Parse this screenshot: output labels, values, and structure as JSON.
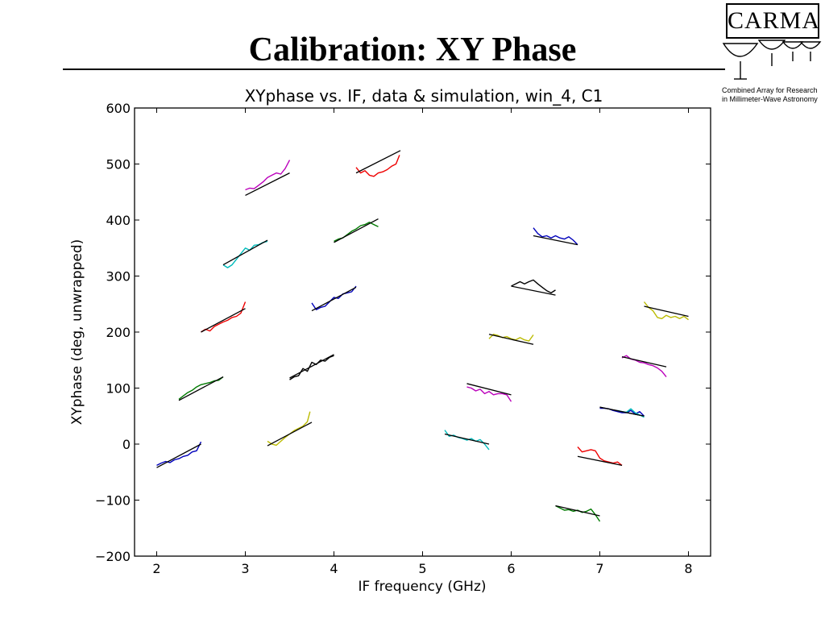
{
  "slide": {
    "title": "Calibration: XY Phase"
  },
  "logo": {
    "name": "CARMA",
    "line1": "Combined Array for Research",
    "line2": "in Millimeter-Wave Astronomy"
  },
  "chart_data": {
    "type": "line",
    "title": "XYphase vs. IF, data & simulation, win_4, C1",
    "xlabel": "IF frequency (GHz)",
    "ylabel": "XYphase (deg, unwrapped)",
    "xlim": [
      1.75,
      8.25
    ],
    "ylim": [
      -200,
      600
    ],
    "xticks": [
      2,
      3,
      4,
      5,
      6,
      7,
      8
    ],
    "yticks": [
      -200,
      -100,
      0,
      100,
      200,
      300,
      400,
      500,
      600
    ],
    "ytick_labels": [
      "−200",
      "−100",
      "0",
      "100",
      "200",
      "300",
      "400",
      "500",
      "600"
    ],
    "grid": false,
    "colors": {
      "blue": "#0000bb",
      "green": "#007a00",
      "red": "#ee0000",
      "cyan": "#00bbbb",
      "magenta": "#bb00bb",
      "yellow": "#bbbb00",
      "black": "#000000",
      "model": "#000000"
    },
    "segments": [
      {
        "color": "blue",
        "fit": [
          [
            2.0,
            -42
          ],
          [
            2.5,
            0
          ]
        ],
        "data": [
          [
            2.0,
            -38
          ],
          [
            2.05,
            -34
          ],
          [
            2.1,
            -31
          ],
          [
            2.15,
            -33
          ],
          [
            2.2,
            -28
          ],
          [
            2.25,
            -26
          ],
          [
            2.3,
            -22
          ],
          [
            2.35,
            -20
          ],
          [
            2.4,
            -14
          ],
          [
            2.45,
            -12
          ],
          [
            2.5,
            4
          ]
        ]
      },
      {
        "color": "green",
        "fit": [
          [
            2.25,
            78
          ],
          [
            2.75,
            120
          ]
        ],
        "data": [
          [
            2.25,
            80
          ],
          [
            2.3,
            86
          ],
          [
            2.35,
            92
          ],
          [
            2.4,
            96
          ],
          [
            2.45,
            102
          ],
          [
            2.5,
            106
          ],
          [
            2.55,
            108
          ],
          [
            2.6,
            110
          ],
          [
            2.65,
            113
          ],
          [
            2.7,
            114
          ],
          [
            2.75,
            120
          ]
        ]
      },
      {
        "color": "red",
        "fit": [
          [
            2.5,
            200
          ],
          [
            3.0,
            242
          ]
        ],
        "data": [
          [
            2.5,
            200
          ],
          [
            2.55,
            205
          ],
          [
            2.6,
            202
          ],
          [
            2.65,
            210
          ],
          [
            2.7,
            214
          ],
          [
            2.75,
            218
          ],
          [
            2.8,
            221
          ],
          [
            2.85,
            226
          ],
          [
            2.9,
            228
          ],
          [
            2.95,
            234
          ],
          [
            3.0,
            254
          ]
        ]
      },
      {
        "color": "cyan",
        "fit": [
          [
            2.75,
            320
          ],
          [
            3.25,
            364
          ]
        ],
        "data": [
          [
            2.75,
            320
          ],
          [
            2.8,
            315
          ],
          [
            2.85,
            320
          ],
          [
            2.9,
            330
          ],
          [
            2.95,
            340
          ],
          [
            3.0,
            350
          ],
          [
            3.05,
            346
          ],
          [
            3.1,
            355
          ],
          [
            3.15,
            356
          ],
          [
            3.2,
            360
          ],
          [
            3.25,
            362
          ]
        ]
      },
      {
        "color": "magenta",
        "fit": [
          [
            3.0,
            444
          ],
          [
            3.5,
            484
          ]
        ],
        "data": [
          [
            3.0,
            454
          ],
          [
            3.05,
            457
          ],
          [
            3.1,
            456
          ],
          [
            3.15,
            462
          ],
          [
            3.2,
            468
          ],
          [
            3.25,
            476
          ],
          [
            3.3,
            480
          ],
          [
            3.35,
            484
          ],
          [
            3.4,
            482
          ],
          [
            3.45,
            492
          ],
          [
            3.5,
            507
          ]
        ]
      },
      {
        "color": "yellow",
        "fit": [
          [
            3.25,
            -3
          ],
          [
            3.75,
            39
          ]
        ],
        "data": [
          [
            3.25,
            5
          ],
          [
            3.3,
            0
          ],
          [
            3.35,
            -2
          ],
          [
            3.4,
            5
          ],
          [
            3.45,
            12
          ],
          [
            3.5,
            18
          ],
          [
            3.55,
            24
          ],
          [
            3.6,
            28
          ],
          [
            3.65,
            32
          ],
          [
            3.7,
            40
          ],
          [
            3.73,
            58
          ]
        ]
      },
      {
        "color": "black",
        "fit": [
          [
            3.5,
            118
          ],
          [
            4.0,
            160
          ]
        ],
        "data": [
          [
            3.5,
            115
          ],
          [
            3.55,
            120
          ],
          [
            3.6,
            122
          ],
          [
            3.65,
            135
          ],
          [
            3.7,
            130
          ],
          [
            3.75,
            146
          ],
          [
            3.8,
            142
          ],
          [
            3.85,
            150
          ],
          [
            3.9,
            148
          ],
          [
            3.95,
            155
          ],
          [
            4.0,
            158
          ]
        ]
      },
      {
        "color": "blue",
        "fit": [
          [
            3.75,
            238
          ],
          [
            4.25,
            280
          ]
        ],
        "data": [
          [
            3.75,
            252
          ],
          [
            3.8,
            240
          ],
          [
            3.85,
            244
          ],
          [
            3.9,
            246
          ],
          [
            3.95,
            254
          ],
          [
            4.0,
            262
          ],
          [
            4.05,
            260
          ],
          [
            4.1,
            268
          ],
          [
            4.15,
            270
          ],
          [
            4.2,
            272
          ],
          [
            4.25,
            282
          ]
        ]
      },
      {
        "color": "green",
        "fit": [
          [
            4.0,
            360
          ],
          [
            4.5,
            402
          ]
        ],
        "data": [
          [
            4.0,
            362
          ],
          [
            4.05,
            366
          ],
          [
            4.1,
            368
          ],
          [
            4.15,
            374
          ],
          [
            4.2,
            380
          ],
          [
            4.25,
            384
          ],
          [
            4.3,
            390
          ],
          [
            4.35,
            392
          ],
          [
            4.4,
            396
          ],
          [
            4.45,
            392
          ],
          [
            4.5,
            388
          ]
        ]
      },
      {
        "color": "red",
        "fit": [
          [
            4.25,
            484
          ],
          [
            4.75,
            524
          ]
        ],
        "data": [
          [
            4.25,
            494
          ],
          [
            4.3,
            484
          ],
          [
            4.35,
            488
          ],
          [
            4.4,
            480
          ],
          [
            4.45,
            478
          ],
          [
            4.5,
            484
          ],
          [
            4.55,
            486
          ],
          [
            4.6,
            490
          ],
          [
            4.65,
            496
          ],
          [
            4.7,
            500
          ],
          [
            4.74,
            516
          ]
        ]
      },
      {
        "color": "cyan",
        "fit": [
          [
            5.25,
            18
          ],
          [
            5.75,
            0
          ]
        ],
        "data": [
          [
            5.25,
            25
          ],
          [
            5.3,
            14
          ],
          [
            5.35,
            16
          ],
          [
            5.4,
            12
          ],
          [
            5.45,
            10
          ],
          [
            5.5,
            7
          ],
          [
            5.55,
            10
          ],
          [
            5.6,
            5
          ],
          [
            5.65,
            8
          ],
          [
            5.7,
            0
          ],
          [
            5.75,
            -10
          ]
        ]
      },
      {
        "color": "magenta",
        "fit": [
          [
            5.5,
            108
          ],
          [
            6.0,
            88
          ]
        ],
        "data": [
          [
            5.5,
            102
          ],
          [
            5.55,
            100
          ],
          [
            5.6,
            95
          ],
          [
            5.65,
            98
          ],
          [
            5.7,
            90
          ],
          [
            5.75,
            94
          ],
          [
            5.8,
            88
          ],
          [
            5.85,
            90
          ],
          [
            5.9,
            90
          ],
          [
            5.95,
            88
          ],
          [
            6.0,
            76
          ]
        ]
      },
      {
        "color": "yellow",
        "fit": [
          [
            5.75,
            196
          ],
          [
            6.25,
            178
          ]
        ],
        "data": [
          [
            5.75,
            188
          ],
          [
            5.8,
            196
          ],
          [
            5.85,
            194
          ],
          [
            5.9,
            190
          ],
          [
            5.95,
            192
          ],
          [
            6.0,
            188
          ],
          [
            6.05,
            186
          ],
          [
            6.1,
            190
          ],
          [
            6.15,
            186
          ],
          [
            6.2,
            184
          ],
          [
            6.25,
            195
          ]
        ]
      },
      {
        "color": "black",
        "fit": [
          [
            6.0,
            282
          ],
          [
            6.5,
            266
          ]
        ],
        "data": [
          [
            6.0,
            282
          ],
          [
            6.05,
            286
          ],
          [
            6.1,
            290
          ],
          [
            6.15,
            286
          ],
          [
            6.2,
            290
          ],
          [
            6.25,
            293
          ],
          [
            6.3,
            286
          ],
          [
            6.35,
            280
          ],
          [
            6.4,
            274
          ],
          [
            6.45,
            270
          ],
          [
            6.5,
            275
          ]
        ]
      },
      {
        "color": "blue",
        "fit": [
          [
            6.25,
            372
          ],
          [
            6.75,
            356
          ]
        ],
        "data": [
          [
            6.25,
            386
          ],
          [
            6.3,
            376
          ],
          [
            6.35,
            370
          ],
          [
            6.4,
            372
          ],
          [
            6.45,
            368
          ],
          [
            6.5,
            372
          ],
          [
            6.55,
            368
          ],
          [
            6.6,
            366
          ],
          [
            6.65,
            370
          ],
          [
            6.7,
            364
          ],
          [
            6.75,
            356
          ]
        ]
      },
      {
        "color": "green",
        "fit": [
          [
            6.5,
            -110
          ],
          [
            7.0,
            -128
          ]
        ],
        "data": [
          [
            6.5,
            -110
          ],
          [
            6.55,
            -114
          ],
          [
            6.6,
            -118
          ],
          [
            6.65,
            -117
          ],
          [
            6.7,
            -120
          ],
          [
            6.75,
            -118
          ],
          [
            6.8,
            -122
          ],
          [
            6.85,
            -120
          ],
          [
            6.9,
            -116
          ],
          [
            6.95,
            -126
          ],
          [
            7.0,
            -138
          ]
        ]
      },
      {
        "color": "red",
        "fit": [
          [
            6.75,
            -22
          ],
          [
            7.25,
            -38
          ]
        ],
        "data": [
          [
            6.75,
            -5
          ],
          [
            6.8,
            -14
          ],
          [
            6.85,
            -12
          ],
          [
            6.9,
            -10
          ],
          [
            6.95,
            -12
          ],
          [
            7.0,
            -25
          ],
          [
            7.05,
            -30
          ],
          [
            7.1,
            -32
          ],
          [
            7.15,
            -34
          ],
          [
            7.2,
            -32
          ],
          [
            7.25,
            -38
          ]
        ]
      },
      {
        "color": "blue",
        "fit": [
          [
            7.0,
            66
          ],
          [
            7.5,
            50
          ]
        ],
        "data": [
          [
            7.0,
            64
          ],
          [
            7.05,
            64
          ],
          [
            7.1,
            63
          ],
          [
            7.15,
            60
          ],
          [
            7.2,
            58
          ],
          [
            7.25,
            56
          ],
          [
            7.3,
            56
          ],
          [
            7.35,
            60
          ],
          [
            7.4,
            54
          ],
          [
            7.45,
            58
          ],
          [
            7.5,
            50
          ]
        ]
      },
      {
        "color": "cyan",
        "fit": [
          [
            7.0,
            66
          ],
          [
            7.5,
            50
          ]
        ],
        "data": [
          [
            7.2,
            60
          ],
          [
            7.25,
            58
          ],
          [
            7.3,
            57
          ],
          [
            7.35,
            63
          ],
          [
            7.4,
            56
          ],
          [
            7.45,
            52
          ],
          [
            7.5,
            48
          ]
        ]
      },
      {
        "color": "magenta",
        "fit": [
          [
            7.25,
            156
          ],
          [
            7.75,
            138
          ]
        ],
        "data": [
          [
            7.25,
            154
          ],
          [
            7.3,
            158
          ],
          [
            7.35,
            152
          ],
          [
            7.4,
            150
          ],
          [
            7.45,
            146
          ],
          [
            7.5,
            145
          ],
          [
            7.55,
            142
          ],
          [
            7.6,
            140
          ],
          [
            7.65,
            136
          ],
          [
            7.7,
            130
          ],
          [
            7.75,
            120
          ]
        ]
      },
      {
        "color": "yellow",
        "fit": [
          [
            7.5,
            246
          ],
          [
            8.0,
            228
          ]
        ],
        "data": [
          [
            7.5,
            254
          ],
          [
            7.55,
            244
          ],
          [
            7.6,
            238
          ],
          [
            7.65,
            226
          ],
          [
            7.7,
            224
          ],
          [
            7.75,
            230
          ],
          [
            7.8,
            226
          ],
          [
            7.85,
            228
          ],
          [
            7.9,
            224
          ],
          [
            7.95,
            228
          ],
          [
            8.0,
            222
          ]
        ]
      }
    ]
  }
}
